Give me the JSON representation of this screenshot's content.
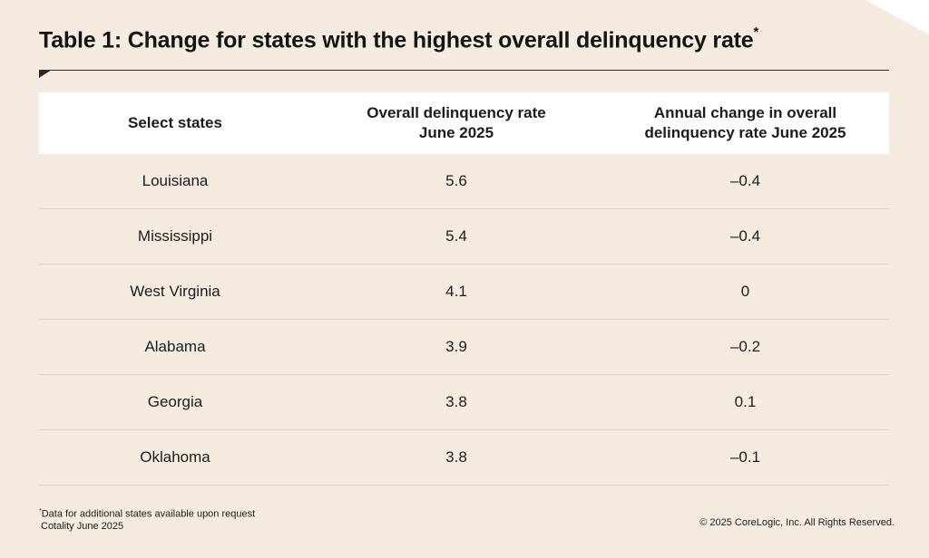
{
  "title": "Table 1: Change for states with the highest overall delinquency rate",
  "title_marker": "*",
  "table": {
    "headers": [
      "Select states",
      "Overall delinquency rate June 2025",
      "Annual change in overall delinquency rate June 2025"
    ],
    "header_lines": [
      [
        "Select states"
      ],
      [
        "Overall delinquency rate",
        "June 2025"
      ],
      [
        "Annual change in overall",
        "delinquency rate June 2025"
      ]
    ],
    "rows": [
      [
        "Louisiana",
        "5.6",
        "–0.4"
      ],
      [
        "Mississippi",
        "5.4",
        "–0.4"
      ],
      [
        "West Virginia",
        "4.1",
        "0"
      ],
      [
        "Alabama",
        "3.9",
        "–0.2"
      ],
      [
        "Georgia",
        "3.8",
        "0.1"
      ],
      [
        "Oklahoma",
        "3.8",
        "–0.1"
      ]
    ]
  },
  "footnote": {
    "marker": "*",
    "text": "Data for additional states available upon request",
    "source": "Cotality June 2025"
  },
  "copyright": "© 2025 CoreLogic, Inc. All Rights Reserved.",
  "colors": {
    "background": "#f5ebe0",
    "header_background": "#ffffff",
    "text": "#1c1c1c"
  }
}
